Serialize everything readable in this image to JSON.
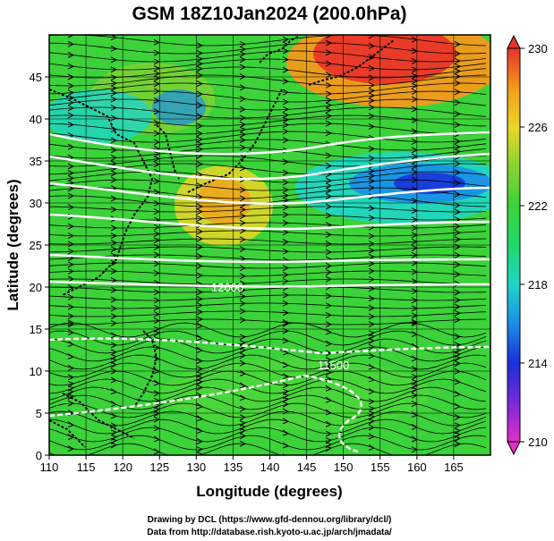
{
  "title": "GSM 18Z10Jan2024 (200.0hPa)",
  "xlabel": "Longitude (degrees)",
  "ylabel": "Latitude  (degrees)",
  "credits": [
    "Drawing by DCL (https://www.gfd-dennou.org/library/dcl/)",
    "Data from http://database.rish.kyoto-u.ac.jp/arch/jmadata/"
  ],
  "map": {
    "lon_range": [
      110,
      170
    ],
    "lat_range": [
      0,
      50
    ],
    "lon_ticks": [
      110,
      115,
      120,
      125,
      130,
      135,
      140,
      145,
      150,
      155,
      160,
      165
    ],
    "lat_ticks": [
      0,
      5,
      10,
      15,
      20,
      25,
      30,
      35,
      40,
      45
    ],
    "grid": true,
    "field": "temperature (shaded) with geopotential height contours and wind streamlines",
    "contour_labels": [
      "12000",
      "11500"
    ],
    "colors": {
      "warm_max": "#e8322a",
      "orange": "#f39a1a",
      "yellow": "#e9d627",
      "green": "#3cd23a",
      "cyan": "#1ed6c8",
      "blue": "#1a3fe0",
      "magenta": "#e030c8"
    }
  },
  "colorbar": {
    "min": 210,
    "max": 230,
    "tick_labels": [
      "230",
      "226",
      "222",
      "218",
      "214",
      "210"
    ],
    "stops": [
      {
        "value": 210,
        "color": "#e030c8"
      },
      {
        "value": 212,
        "color": "#7a2ad8"
      },
      {
        "value": 214,
        "color": "#1a2fd8"
      },
      {
        "value": 216,
        "color": "#1a8ee8"
      },
      {
        "value": 218,
        "color": "#1ed6c8"
      },
      {
        "value": 220,
        "color": "#20d86a"
      },
      {
        "value": 222,
        "color": "#3cd23a"
      },
      {
        "value": 224,
        "color": "#8ad230"
      },
      {
        "value": 226,
        "color": "#e9d627"
      },
      {
        "value": 228,
        "color": "#f39a1a"
      },
      {
        "value": 230,
        "color": "#e8322a"
      }
    ]
  }
}
